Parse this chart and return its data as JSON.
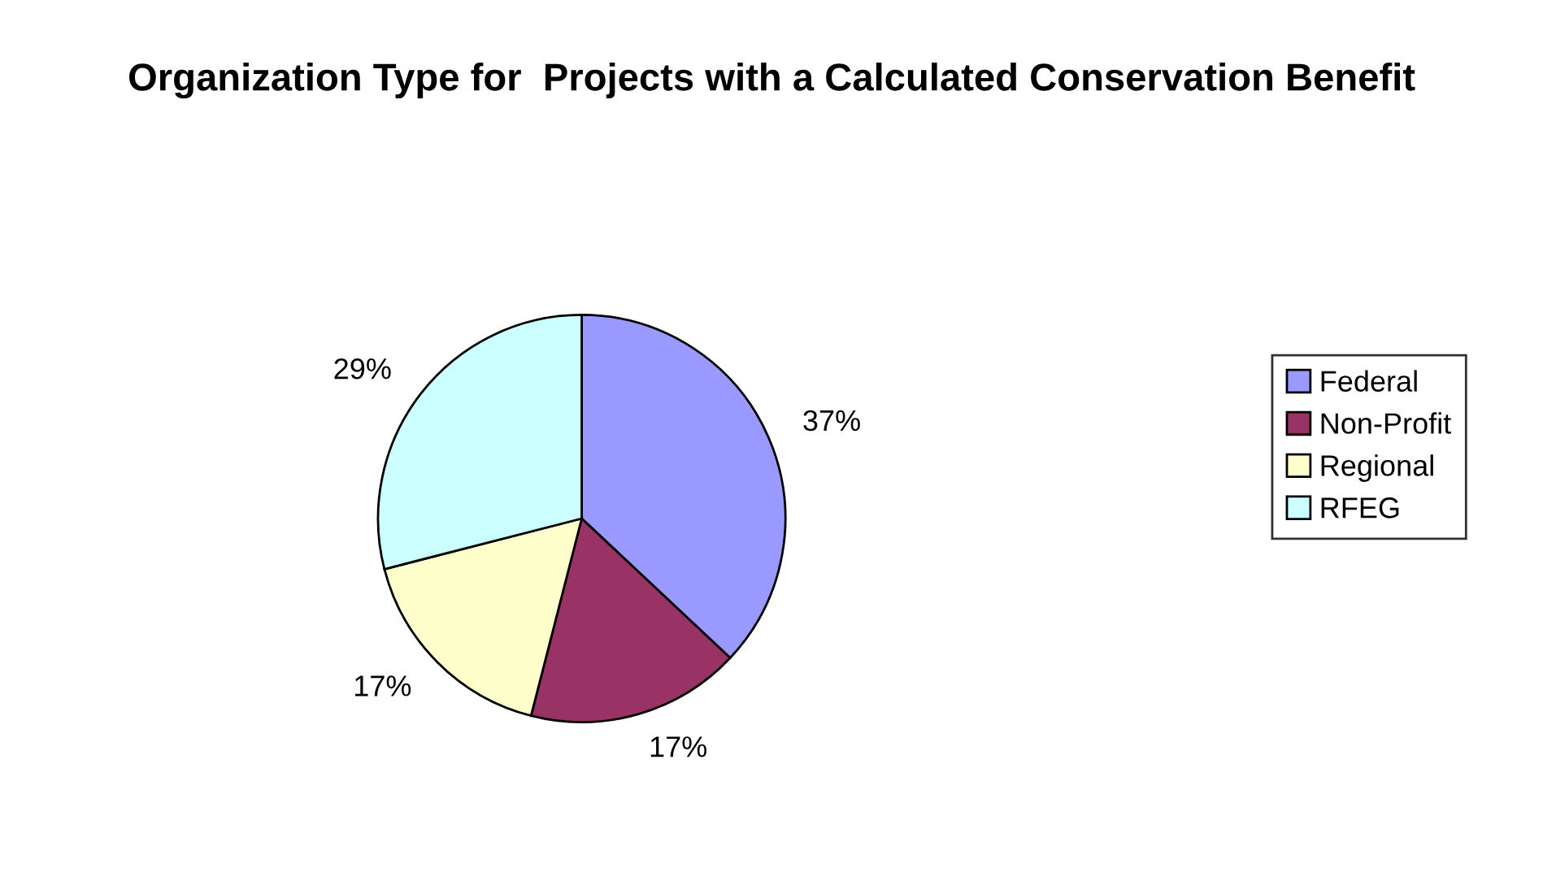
{
  "chart_data": {
    "type": "pie",
    "title": "Organization Type for  Projects with a Calculated Conservation Benefit",
    "categories": [
      "Federal",
      "Non-Profit",
      "Regional",
      "RFEG"
    ],
    "values": [
      37,
      17,
      17,
      29
    ],
    "value_labels": [
      "37%",
      "17%",
      "17%",
      "29%"
    ],
    "colors": [
      "#9999ff",
      "#993366",
      "#ffffcc",
      "#ccffff"
    ],
    "legend": "right"
  }
}
